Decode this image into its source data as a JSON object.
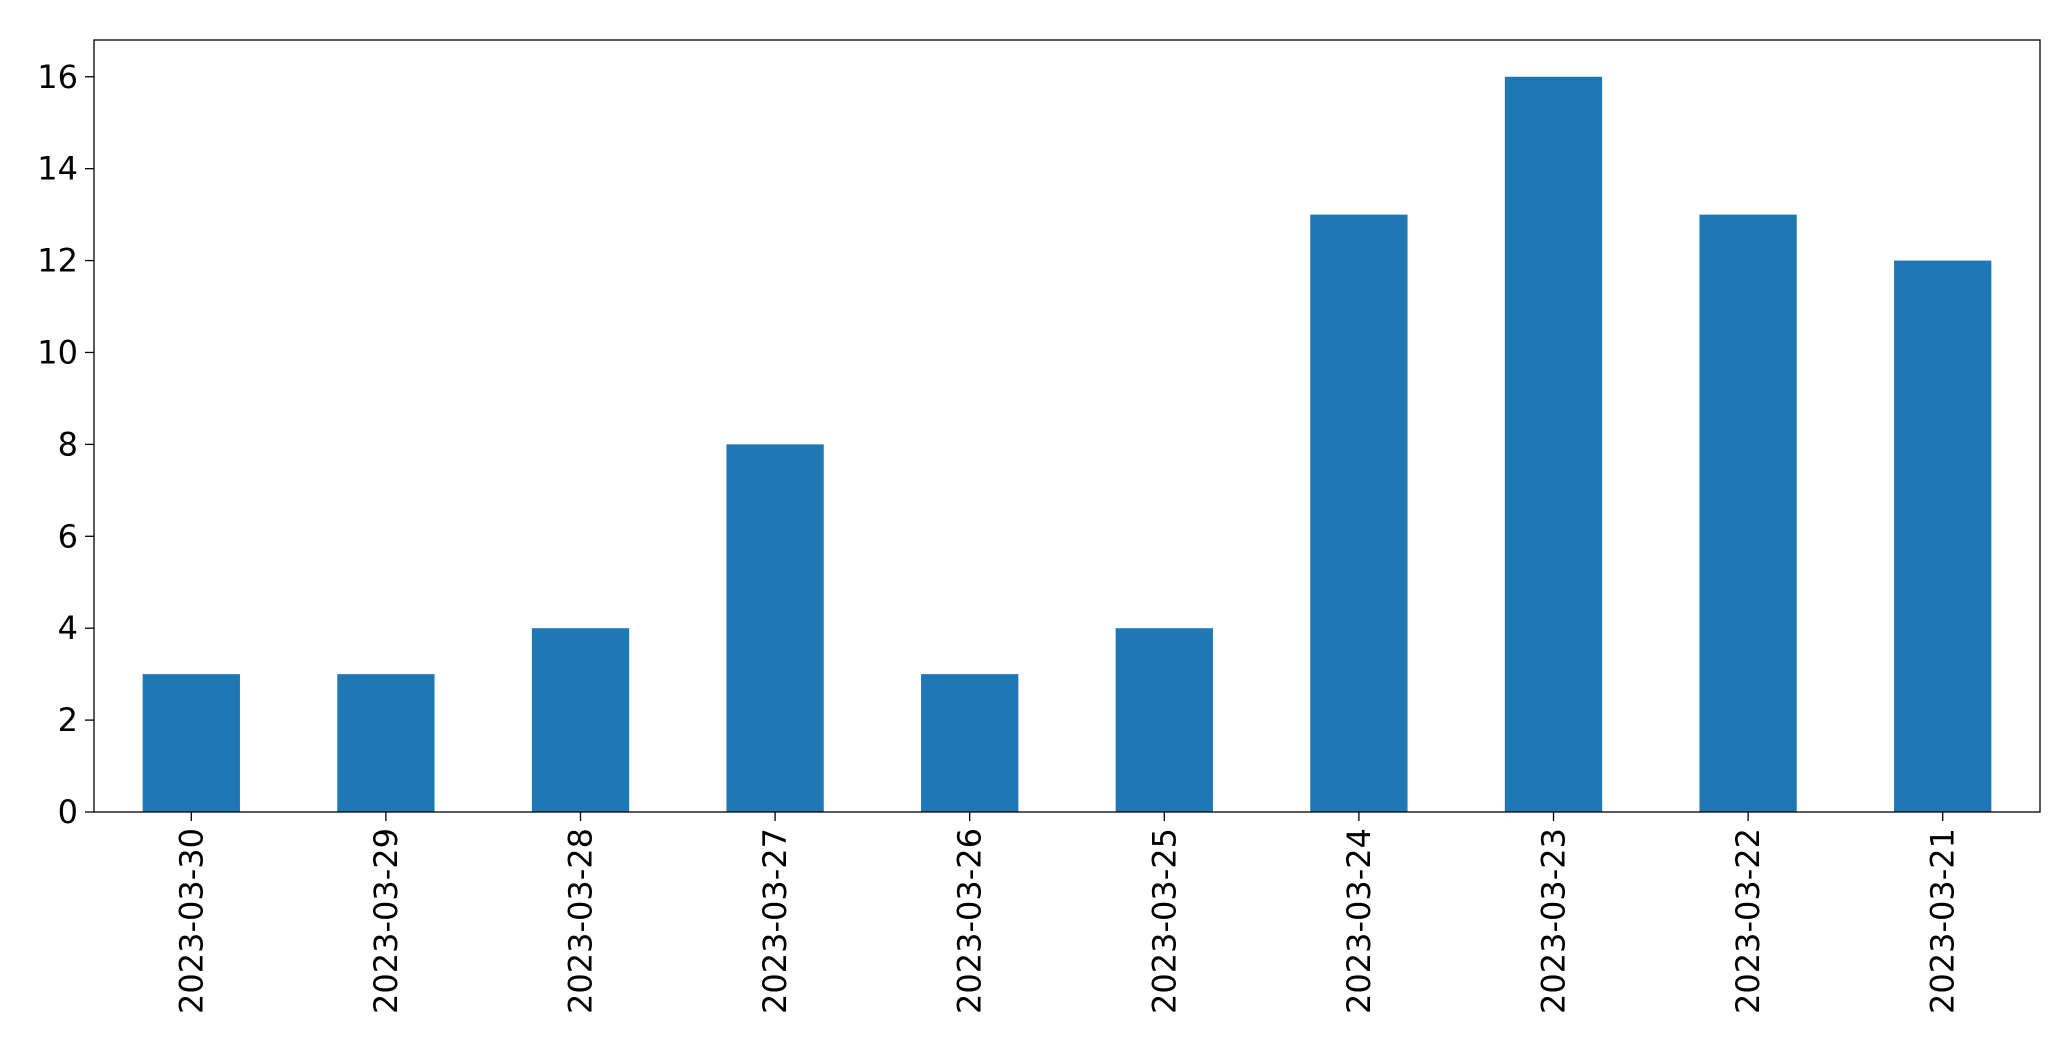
{
  "chart_data": {
    "type": "bar",
    "categories": [
      "2023-03-30",
      "2023-03-29",
      "2023-03-28",
      "2023-03-27",
      "2023-03-26",
      "2023-03-25",
      "2023-03-24",
      "2023-03-23",
      "2023-03-22",
      "2023-03-21"
    ],
    "values": [
      3,
      3,
      4,
      8,
      3,
      4,
      13,
      16,
      13,
      12
    ],
    "color": "#1f77b4",
    "ylim": [
      0,
      16.8
    ],
    "yticks": [
      0,
      2,
      4,
      6,
      8,
      10,
      12,
      14,
      16
    ],
    "grid": false
  }
}
